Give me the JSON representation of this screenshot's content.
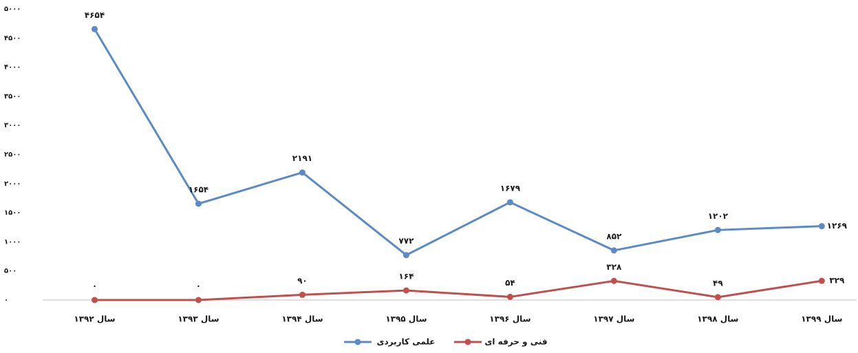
{
  "chart_data": {
    "type": "line",
    "categories": [
      "سال ۱۳۹۲",
      "سال ۱۳۹۳",
      "سال ۱۳۹۴",
      "سال ۱۳۹۵",
      "سال ۱۳۹۶",
      "سال ۱۳۹۷",
      "سال ۱۳۹۸",
      "سال ۱۳۹۹"
    ],
    "series": [
      {
        "name": "علمی کاربردی",
        "color": "#5b8ac6",
        "values": [
          4654,
          1654,
          2191,
          772,
          1679,
          852,
          1202,
          1269
        ],
        "value_labels": [
          "۴۶۵۴",
          "۱۶۵۴",
          "۲۱۹۱",
          "۷۷۲",
          "۱۶۷۹",
          "۸۵۲",
          "۱۲۰۲",
          "۱۲۶۹"
        ]
      },
      {
        "name": "فنی و حرفه ای",
        "color": "#c0504d",
        "values": [
          0,
          0,
          90,
          164,
          54,
          328,
          49,
          329
        ],
        "value_labels": [
          "۰",
          "۰",
          "۹۰",
          "۱۶۴",
          "۵۴",
          "۳۲۸",
          "۴۹",
          "۳۲۹"
        ]
      }
    ],
    "ylim": [
      0,
      5000
    ],
    "yticks": [
      {
        "value": 0,
        "label": "۰"
      },
      {
        "value": 500,
        "label": "۵۰۰"
      },
      {
        "value": 1000,
        "label": "۱۰۰۰"
      },
      {
        "value": 1500,
        "label": "۱۵۰۰"
      },
      {
        "value": 2000,
        "label": "۲۰۰۰"
      },
      {
        "value": 2500,
        "label": "۲۵۰۰"
      },
      {
        "value": 3000,
        "label": "۳۰۰۰"
      },
      {
        "value": 3500,
        "label": "۳۵۰۰"
      },
      {
        "value": 4000,
        "label": "۴۰۰۰"
      },
      {
        "value": 4500,
        "label": "۴۵۰۰"
      },
      {
        "value": 5000,
        "label": "۵۰۰۰"
      }
    ],
    "grid": false,
    "legend": "bottom"
  }
}
